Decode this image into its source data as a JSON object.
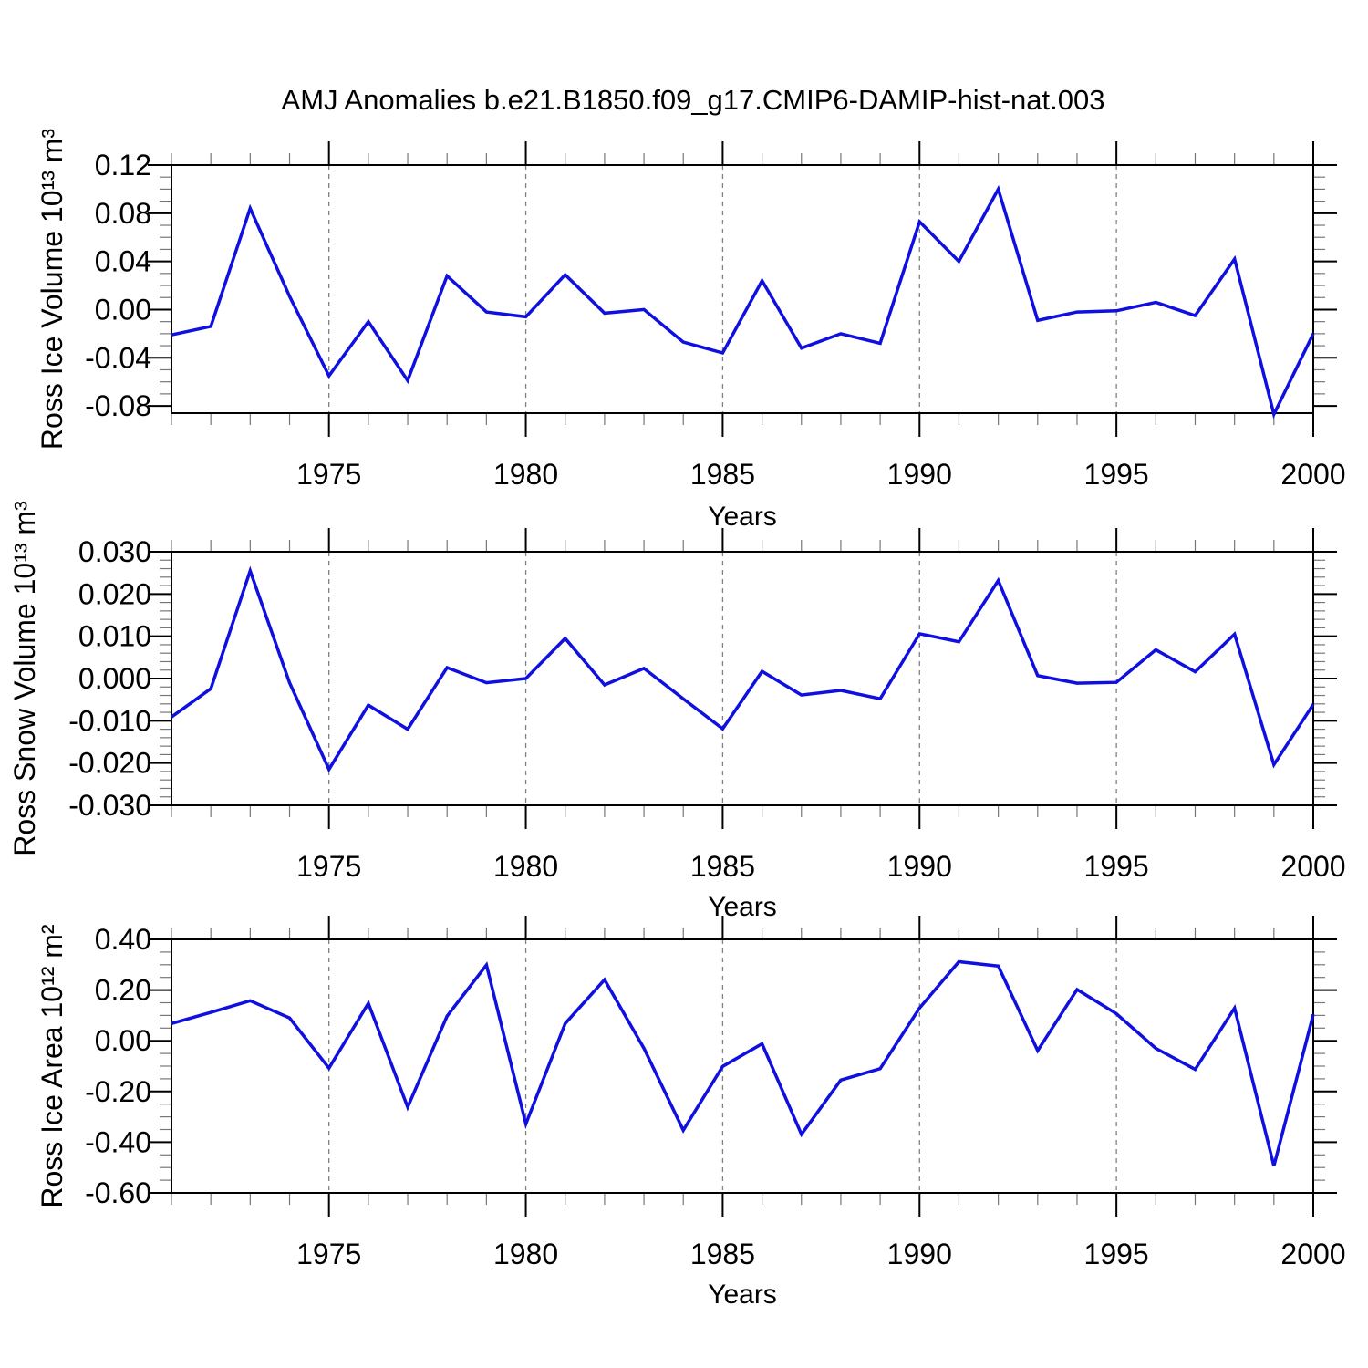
{
  "title": "AMJ Anomalies b.e21.B1850.f09_g17.CMIP6-DAMIP-hist-nat.003",
  "colors": {
    "line": "#0f0fe0",
    "grid": "#808080",
    "frame": "#000000",
    "minor_tick": "#777777"
  },
  "chart_data": [
    {
      "type": "line",
      "series_name": "Ross Ice Volume anomaly",
      "ylabel": "Ross Ice Volume 10¹³ m³",
      "xlabel": "Years",
      "x": [
        1971,
        1972,
        1973,
        1974,
        1975,
        1976,
        1977,
        1978,
        1979,
        1980,
        1981,
        1982,
        1983,
        1984,
        1985,
        1986,
        1987,
        1988,
        1989,
        1990,
        1991,
        1992,
        1993,
        1994,
        1995,
        1996,
        1997,
        1998,
        1999,
        2000
      ],
      "values": [
        -0.021,
        -0.014,
        0.084,
        0.011,
        -0.055,
        -0.01,
        -0.059,
        0.028,
        -0.002,
        -0.006,
        0.029,
        -0.003,
        0.0,
        -0.027,
        -0.036,
        0.024,
        -0.032,
        -0.02,
        -0.028,
        0.073,
        0.04,
        0.1,
        -0.009,
        -0.002,
        -0.001,
        0.006,
        -0.005,
        0.042,
        -0.087,
        -0.02
      ],
      "ylim": [
        -0.086,
        0.12
      ],
      "ytick_values": [
        0.12,
        0.08,
        0.04,
        0.0,
        -0.04,
        -0.08
      ],
      "ytick_labels": [
        "0.12",
        "0.08",
        "0.04",
        "0.00",
        "-0.04",
        "-0.08"
      ],
      "ymajor_step": 0.04,
      "yminor_step": 0.01,
      "xlim": [
        1971,
        2000
      ],
      "xtick_values": [
        1975,
        1980,
        1985,
        1990,
        1995,
        2000
      ],
      "xtick_labels": [
        "1975",
        "1980",
        "1985",
        "1990",
        "1995",
        "2000"
      ],
      "xminor_step": 1,
      "grid_x": [
        1975,
        1980,
        1985,
        1990,
        1995
      ],
      "grid_on": true,
      "legend": "none"
    },
    {
      "type": "line",
      "series_name": "Ross Snow Volume anomaly",
      "ylabel": "Ross Snow Volume 10¹³ m³",
      "xlabel": "Years",
      "x": [
        1971,
        1972,
        1973,
        1974,
        1975,
        1976,
        1977,
        1978,
        1979,
        1980,
        1981,
        1982,
        1983,
        1984,
        1985,
        1986,
        1987,
        1988,
        1989,
        1990,
        1991,
        1992,
        1993,
        1994,
        1995,
        1996,
        1997,
        1998,
        1999,
        2000
      ],
      "values": [
        -0.0091,
        -0.0024,
        0.0255,
        -0.001,
        -0.0215,
        -0.0063,
        -0.012,
        0.0026,
        -0.001,
        0.0,
        0.0095,
        -0.0015,
        0.0024,
        -0.0048,
        -0.0119,
        0.0017,
        -0.0039,
        -0.0028,
        -0.0048,
        0.0106,
        0.0087,
        0.0232,
        0.0007,
        -0.0011,
        -0.0009,
        0.0068,
        0.0016,
        0.0105,
        -0.0204,
        -0.0061
      ],
      "ylim": [
        -0.03,
        0.03
      ],
      "ytick_values": [
        0.03,
        0.02,
        0.01,
        0.0,
        -0.01,
        -0.02,
        -0.03
      ],
      "ytick_labels": [
        "0.030",
        "0.020",
        "0.010",
        "0.000",
        "-0.010",
        "-0.020",
        "-0.030"
      ],
      "ymajor_step": 0.01,
      "yminor_step": 0.002,
      "xlim": [
        1971,
        2000
      ],
      "xtick_values": [
        1975,
        1980,
        1985,
        1990,
        1995,
        2000
      ],
      "xtick_labels": [
        "1975",
        "1980",
        "1985",
        "1990",
        "1995",
        "2000"
      ],
      "xminor_step": 1,
      "grid_x": [
        1975,
        1980,
        1985,
        1990,
        1995
      ],
      "grid_on": true,
      "legend": "none"
    },
    {
      "type": "line",
      "series_name": "Ross Ice Area anomaly",
      "ylabel": "Ross Ice Area 10¹² m²",
      "xlabel": "Years",
      "x": [
        1971,
        1972,
        1973,
        1974,
        1975,
        1976,
        1977,
        1978,
        1979,
        1980,
        1981,
        1982,
        1983,
        1984,
        1985,
        1986,
        1987,
        1988,
        1989,
        1990,
        1991,
        1992,
        1993,
        1994,
        1995,
        1996,
        1997,
        1998,
        1999,
        2000
      ],
      "values": [
        0.068,
        0.112,
        0.158,
        0.09,
        -0.108,
        0.148,
        -0.262,
        0.097,
        0.299,
        -0.328,
        0.068,
        0.241,
        -0.03,
        -0.353,
        -0.101,
        -0.012,
        -0.369,
        -0.155,
        -0.11,
        0.129,
        0.312,
        0.295,
        -0.039,
        0.202,
        0.107,
        -0.03,
        -0.113,
        0.129,
        -0.494,
        0.104
      ],
      "ylim": [
        -0.6,
        0.4
      ],
      "ytick_values": [
        0.4,
        0.2,
        0.0,
        -0.2,
        -0.4,
        -0.6
      ],
      "ytick_labels": [
        "0.40",
        "0.20",
        "0.00",
        "-0.20",
        "-0.40",
        "-0.60"
      ],
      "ymajor_step": 0.2,
      "yminor_step": 0.05,
      "xlim": [
        1971,
        2000
      ],
      "xtick_values": [
        1975,
        1980,
        1985,
        1990,
        1995,
        2000
      ],
      "xtick_labels": [
        "1975",
        "1980",
        "1985",
        "1990",
        "1995",
        "2000"
      ],
      "xminor_step": 1,
      "grid_x": [
        1975,
        1980,
        1985,
        1990,
        1995
      ],
      "grid_on": true,
      "legend": "none"
    }
  ]
}
